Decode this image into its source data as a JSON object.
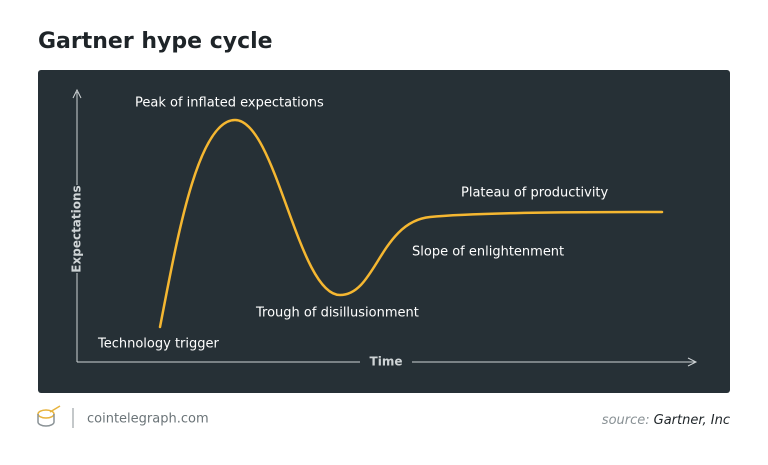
{
  "header": {
    "title": "Gartner hype cycle"
  },
  "axes": {
    "y_label": "Expectations",
    "x_label": "Time"
  },
  "phases": [
    {
      "label": "Technology trigger"
    },
    {
      "label": "Peak of inflated expectations"
    },
    {
      "label": "Trough of disillusionment"
    },
    {
      "label": "Slope of enlightenment"
    },
    {
      "label": "Plateau of productivity"
    }
  ],
  "footer": {
    "brand": "cointelegraph.com",
    "source_prefix": "source:",
    "source": "Gartner, Inc"
  }
}
